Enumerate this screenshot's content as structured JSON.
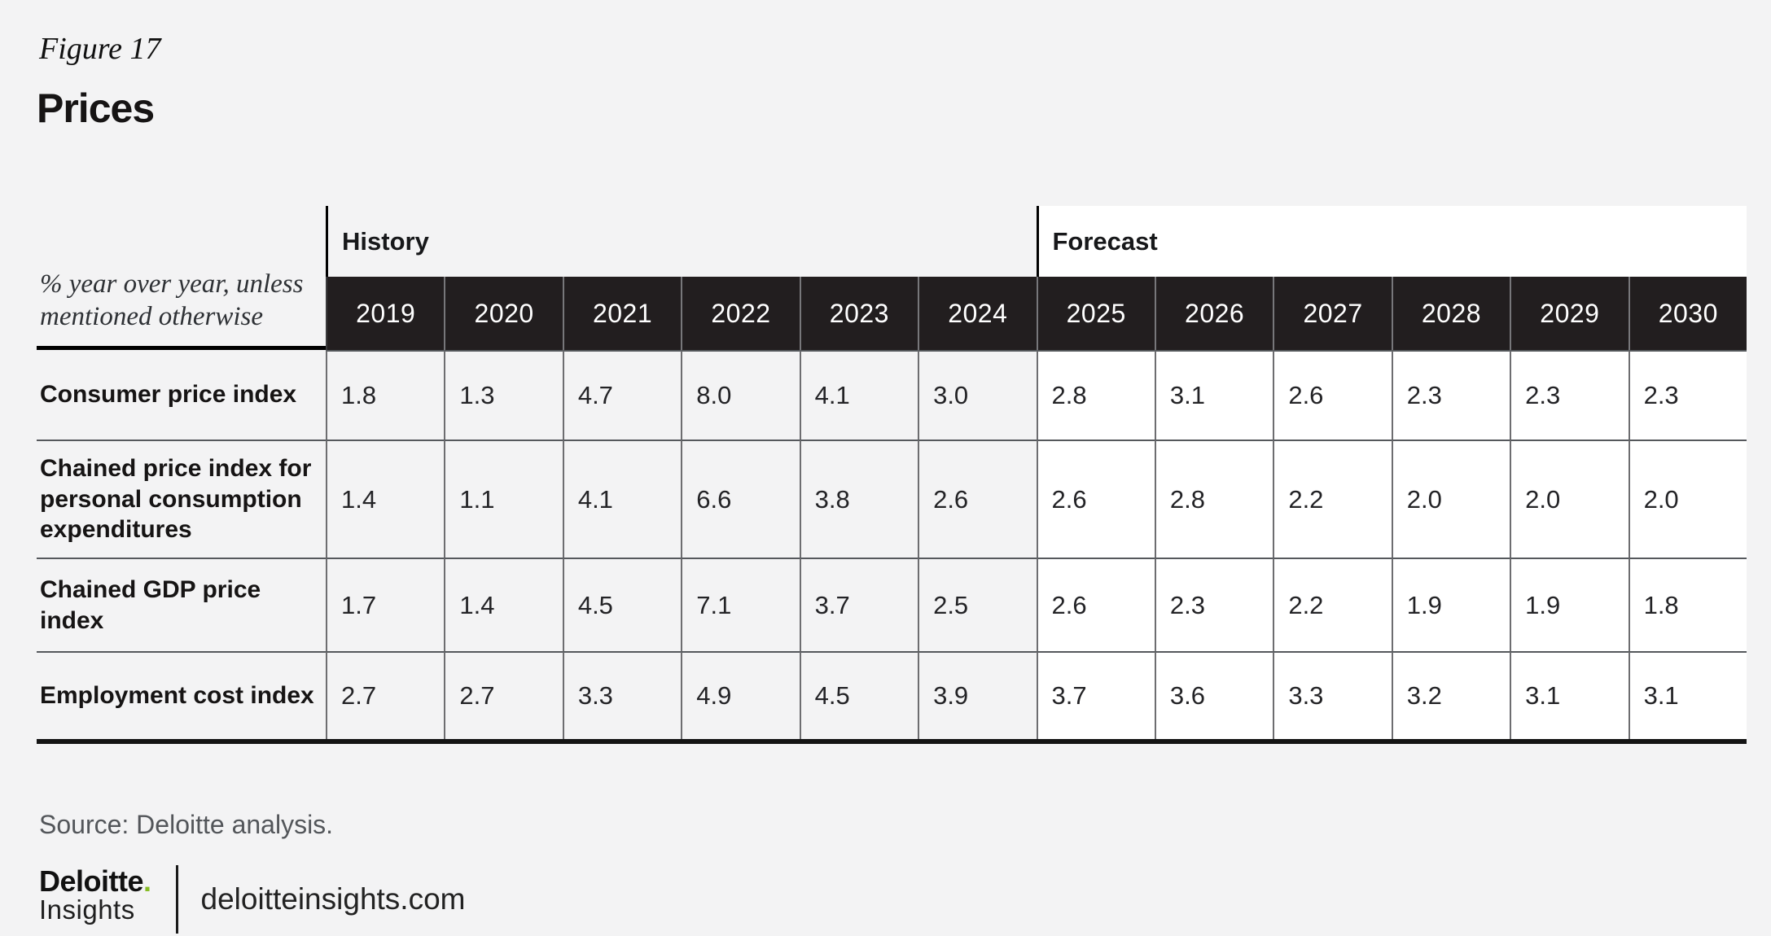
{
  "figure": {
    "label": "Figure 17",
    "title": "Prices"
  },
  "table": {
    "unit_note": "% year over year, unless mentioned otherwise",
    "history_label": "History",
    "forecast_label": "Forecast",
    "years": [
      "2019",
      "2020",
      "2021",
      "2022",
      "2023",
      "2024",
      "2025",
      "2026",
      "2027",
      "2028",
      "2029",
      "2030"
    ],
    "rows": [
      {
        "label": "Consumer price index",
        "values": [
          "1.8",
          "1.3",
          "4.7",
          "8.0",
          "4.1",
          "3.0",
          "2.8",
          "3.1",
          "2.6",
          "2.3",
          "2.3",
          "2.3"
        ]
      },
      {
        "label": "Chained price index for personal consumption expenditures",
        "values": [
          "1.4",
          "1.1",
          "4.1",
          "6.6",
          "3.8",
          "2.6",
          "2.6",
          "2.8",
          "2.2",
          "2.0",
          "2.0",
          "2.0"
        ]
      },
      {
        "label": "Chained GDP price index",
        "values": [
          "1.7",
          "1.4",
          "4.5",
          "7.1",
          "3.7",
          "2.5",
          "2.6",
          "2.3",
          "2.2",
          "1.9",
          "1.9",
          "1.8"
        ]
      },
      {
        "label": "Employment cost index",
        "values": [
          "2.7",
          "2.7",
          "3.3",
          "4.9",
          "4.5",
          "3.9",
          "3.7",
          "3.6",
          "3.3",
          "3.2",
          "3.1",
          "3.1"
        ]
      }
    ]
  },
  "footer": {
    "source": "Source: Deloitte analysis.",
    "brand": "Deloitte",
    "brand_dot": ".",
    "brand_sub": "Insights",
    "site": "deloitteinsights.com"
  },
  "colors": {
    "page_bg": "#F3F3F4",
    "header_cell_bg": "#221E1F",
    "forecast_bg": "#FFFFFF",
    "accent_green": "#86BC25",
    "grid_line": "#6D6D70"
  },
  "chart_data": {
    "type": "table",
    "title": "Prices",
    "unit": "% year over year, unless mentioned otherwise",
    "categories": [
      2019,
      2020,
      2021,
      2022,
      2023,
      2024,
      2025,
      2026,
      2027,
      2028,
      2029,
      2030
    ],
    "sections": [
      {
        "name": "History",
        "years": [
          2019,
          2020,
          2021,
          2022,
          2023,
          2024
        ]
      },
      {
        "name": "Forecast",
        "years": [
          2025,
          2026,
          2027,
          2028,
          2029,
          2030
        ]
      }
    ],
    "series": [
      {
        "name": "Consumer price index",
        "values": [
          1.8,
          1.3,
          4.7,
          8.0,
          4.1,
          3.0,
          2.8,
          3.1,
          2.6,
          2.3,
          2.3,
          2.3
        ]
      },
      {
        "name": "Chained price index for personal consumption expenditures",
        "values": [
          1.4,
          1.1,
          4.1,
          6.6,
          3.8,
          2.6,
          2.6,
          2.8,
          2.2,
          2.0,
          2.0,
          2.0
        ]
      },
      {
        "name": "Chained GDP price index",
        "values": [
          1.7,
          1.4,
          4.5,
          7.1,
          3.7,
          2.5,
          2.6,
          2.3,
          2.2,
          1.9,
          1.9,
          1.8
        ]
      },
      {
        "name": "Employment cost index",
        "values": [
          2.7,
          2.7,
          3.3,
          4.9,
          4.5,
          3.9,
          3.7,
          3.6,
          3.3,
          3.2,
          3.1,
          3.1
        ]
      }
    ],
    "source": "Source: Deloitte analysis."
  }
}
